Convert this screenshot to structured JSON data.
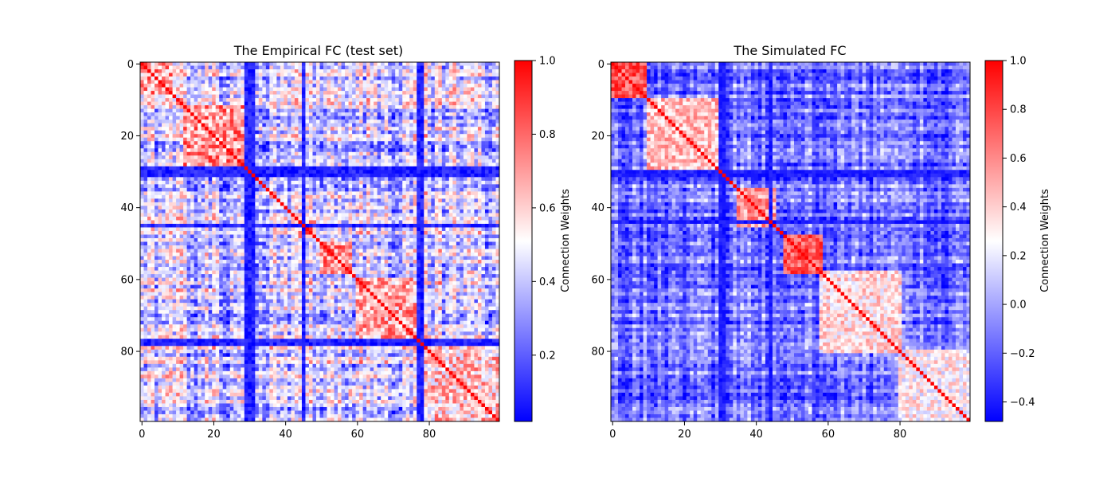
{
  "chart_data": [
    {
      "type": "heatmap",
      "title": "The Empirical FC (test set)",
      "matrix_size": 100,
      "x_ticks": [
        0,
        20,
        40,
        60,
        80
      ],
      "y_ticks": [
        0,
        20,
        40,
        60,
        80
      ],
      "colorbar": {
        "label": "Connection Weights",
        "min": 0.02,
        "max": 1.0,
        "ticks": [
          0.2,
          0.4,
          0.6,
          0.8,
          1.0
        ],
        "tick_labels": [
          "0.2",
          "0.4",
          "0.6",
          "0.8",
          "1.0"
        ]
      },
      "colormap": [
        "#0000ff",
        "#ffffff",
        "#ff0000"
      ],
      "diagonal_value": 1.0,
      "blocks": [
        {
          "from": 0,
          "to": 8,
          "value": 0.7
        },
        {
          "from": 12,
          "to": 28,
          "value": 0.72
        },
        {
          "from": 44,
          "to": 48,
          "value": 0.75
        },
        {
          "from": 50,
          "to": 58,
          "value": 0.72
        },
        {
          "from": 60,
          "to": 78,
          "value": 0.68
        },
        {
          "from": 80,
          "to": 99,
          "value": 0.62
        }
      ],
      "low_lines": [
        29,
        30,
        31,
        45,
        77,
        78
      ],
      "low_line_value": 0.08,
      "background_value": 0.42
    },
    {
      "type": "heatmap",
      "title": "The Simulated FC",
      "matrix_size": 100,
      "x_ticks": [
        0,
        20,
        40,
        60,
        80
      ],
      "y_ticks": [
        0,
        20,
        40,
        60,
        80
      ],
      "colorbar": {
        "label": "Connection Weights",
        "min": -0.48,
        "max": 1.0,
        "ticks": [
          -0.4,
          -0.2,
          0.0,
          0.2,
          0.4,
          0.6,
          0.8,
          1.0
        ],
        "tick_labels": [
          "−0.4",
          "−0.2",
          "0.0",
          "0.2",
          "0.4",
          "0.6",
          "0.8",
          "1.0"
        ]
      },
      "colormap": [
        "#0000ff",
        "#ffffff",
        "#ff0000"
      ],
      "diagonal_value": 1.0,
      "blocks": [
        {
          "from": 0,
          "to": 9,
          "value": 0.75
        },
        {
          "from": 10,
          "to": 30,
          "value": 0.45
        },
        {
          "from": 35,
          "to": 45,
          "value": 0.55
        },
        {
          "from": 48,
          "to": 58,
          "value": 0.75
        },
        {
          "from": 58,
          "to": 80,
          "value": 0.35
        },
        {
          "from": 80,
          "to": 99,
          "value": 0.3
        }
      ],
      "low_lines": [
        30,
        31,
        44
      ],
      "low_line_value": -0.4,
      "background_value": -0.15
    }
  ]
}
